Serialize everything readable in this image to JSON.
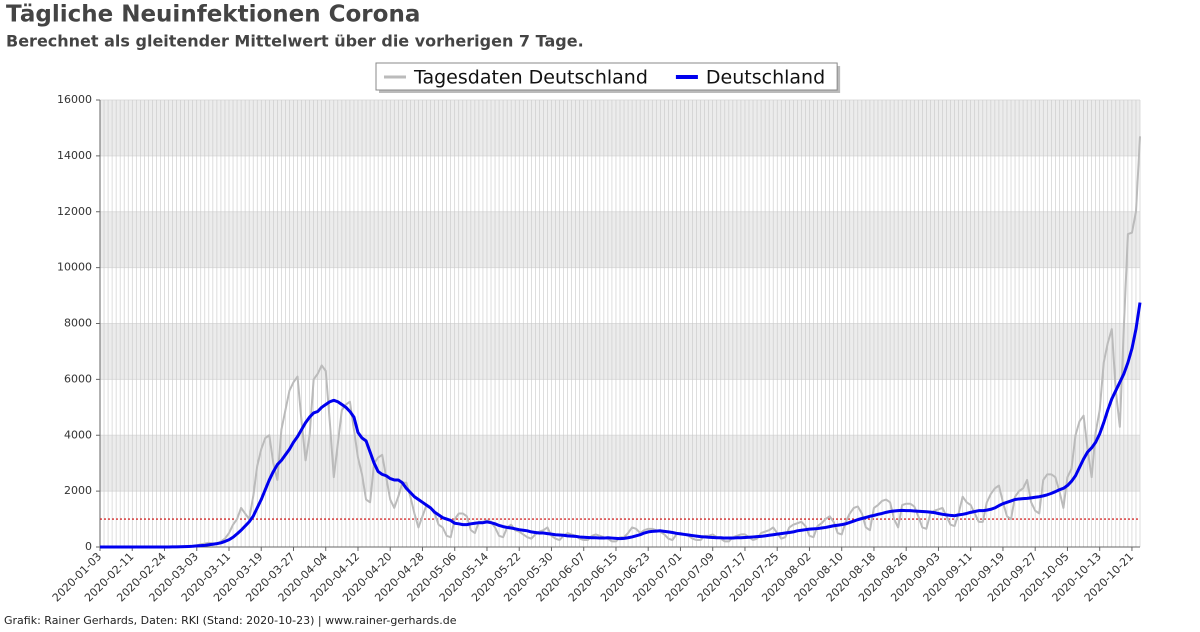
{
  "chart_data": {
    "type": "line",
    "title": "Tägliche Neuinfektionen Corona",
    "subtitle": "Berechnet als gleitender Mittelwert über die vorherigen 7 Tage.",
    "footer": "Grafik: Rainer Gerhards, Daten: RKI (Stand: 2020-10-23) | www.rainer-gerhards.de",
    "categories": [
      "2020-01-03",
      null,
      null,
      null,
      null,
      null,
      null,
      null,
      "2020-02-11",
      null,
      null,
      null,
      null,
      null,
      null,
      null,
      "2020-02-24",
      null,
      null,
      null,
      null,
      null,
      null,
      null,
      "2020-03-03",
      null,
      null,
      null,
      null,
      null,
      null,
      null,
      "2020-03-11",
      null,
      null,
      null,
      null,
      null,
      null,
      null,
      "2020-03-19",
      null,
      null,
      null,
      null,
      null,
      null,
      null,
      "2020-03-27",
      null,
      null,
      null,
      null,
      null,
      null,
      null,
      "2020-04-04",
      null,
      null,
      null,
      null,
      null,
      null,
      null,
      "2020-04-12",
      null,
      null,
      null,
      null,
      null,
      null,
      null,
      "2020-04-20",
      null,
      null,
      null,
      null,
      null,
      null,
      null,
      "2020-04-28",
      null,
      null,
      null,
      null,
      null,
      null,
      null,
      "2020-05-06",
      null,
      null,
      null,
      null,
      null,
      null,
      null,
      "2020-05-14",
      null,
      null,
      null,
      null,
      null,
      null,
      null,
      "2020-05-22",
      null,
      null,
      null,
      null,
      null,
      null,
      null,
      "2020-05-30",
      null,
      null,
      null,
      null,
      null,
      null,
      null,
      "2020-06-07",
      null,
      null,
      null,
      null,
      null,
      null,
      null,
      "2020-06-15",
      null,
      null,
      null,
      null,
      null,
      null,
      null,
      "2020-06-23",
      null,
      null,
      null,
      null,
      null,
      null,
      null,
      "2020-07-01",
      null,
      null,
      null,
      null,
      null,
      null,
      null,
      "2020-07-09",
      null,
      null,
      null,
      null,
      null,
      null,
      null,
      "2020-07-17",
      null,
      null,
      null,
      null,
      null,
      null,
      null,
      "2020-07-25",
      null,
      null,
      null,
      null,
      null,
      null,
      null,
      "2020-08-02",
      null,
      null,
      null,
      null,
      null,
      null,
      null,
      "2020-08-10",
      null,
      null,
      null,
      null,
      null,
      null,
      null,
      "2020-08-18",
      null,
      null,
      null,
      null,
      null,
      null,
      null,
      "2020-08-26",
      null,
      null,
      null,
      null,
      null,
      null,
      null,
      "2020-09-03",
      null,
      null,
      null,
      null,
      null,
      null,
      null,
      "2020-09-11",
      null,
      null,
      null,
      null,
      null,
      null,
      null,
      "2020-09-19",
      null,
      null,
      null,
      null,
      null,
      null,
      null,
      "2020-09-27",
      null,
      null,
      null,
      null,
      null,
      null,
      null,
      "2020-10-05",
      null,
      null,
      null,
      null,
      null,
      null,
      null,
      "2020-10-13",
      null,
      null,
      null,
      null,
      null,
      null,
      null,
      "2020-10-21",
      null,
      null
    ],
    "series": [
      {
        "name": "Tagesdaten Deutschland",
        "color": "#bbbbbb",
        "width": 2,
        "values": [
          0,
          0,
          0,
          0,
          0,
          0,
          0,
          0,
          0,
          0,
          0,
          0,
          0,
          0,
          0,
          0,
          0,
          2,
          5,
          8,
          10,
          15,
          20,
          30,
          50,
          100,
          120,
          150,
          130,
          100,
          200,
          300,
          500,
          800,
          1000,
          1400,
          1200,
          1000,
          1800,
          2900,
          3500,
          3900,
          4000,
          3000,
          2400,
          4200,
          4900,
          5600,
          5900,
          6100,
          4500,
          3100,
          4000,
          6000,
          6200,
          6500,
          6300,
          4500,
          2500,
          3700,
          4900,
          5100,
          5200,
          4200,
          3200,
          2600,
          1700,
          1600,
          3000,
          3200,
          3300,
          2500,
          1700,
          1400,
          1800,
          2300,
          2300,
          1800,
          1200,
          700,
          1100,
          1500,
          1400,
          1200,
          800,
          700,
          400,
          350,
          1000,
          1200,
          1200,
          1100,
          600,
          500,
          900,
          900,
          950,
          900,
          700,
          400,
          350,
          700,
          800,
          600,
          550,
          450,
          350,
          300,
          450,
          550,
          600,
          700,
          400,
          300,
          250,
          400,
          500,
          450,
          400,
          300,
          250,
          250,
          400,
          450,
          400,
          350,
          300,
          200,
          200,
          350,
          350,
          500,
          700,
          650,
          500,
          600,
          650,
          650,
          600,
          550,
          450,
          300,
          250,
          450,
          500,
          450,
          400,
          300,
          250,
          250,
          400,
          400,
          450,
          350,
          300,
          200,
          200,
          350,
          400,
          450,
          450,
          350,
          250,
          300,
          500,
          550,
          600,
          700,
          500,
          300,
          350,
          700,
          800,
          850,
          900,
          750,
          400,
          350,
          750,
          850,
          1000,
          1100,
          900,
          500,
          450,
          900,
          1200,
          1400,
          1450,
          1200,
          700,
          600,
          1400,
          1500,
          1650,
          1700,
          1600,
          1000,
          700,
          1500,
          1550,
          1550,
          1450,
          1100,
          700,
          650,
          1200,
          1300,
          1350,
          1400,
          1100,
          800,
          750,
          1200,
          1800,
          1600,
          1500,
          1200,
          900,
          900,
          1600,
          1900,
          2100,
          2200,
          1600,
          1100,
          1000,
          1800,
          2000,
          2100,
          2400,
          1600,
          1300,
          1200,
          2400,
          2600,
          2600,
          2500,
          2000,
          1400,
          2500,
          2800,
          4000,
          4500,
          4700,
          3500,
          2500,
          4100,
          4900,
          6600,
          7300,
          7800,
          5600,
          4300,
          7900,
          11200,
          11250,
          12000,
          14700
        ]
      },
      {
        "name": "Deutschland",
        "color": "#0000ee",
        "width": 3,
        "values": [
          0,
          0,
          0,
          0,
          0,
          0,
          0,
          0,
          0,
          0,
          0,
          0,
          0,
          0,
          0,
          0,
          1,
          2,
          3,
          5,
          8,
          12,
          18,
          25,
          40,
          50,
          60,
          80,
          100,
          120,
          150,
          200,
          260,
          350,
          470,
          600,
          750,
          900,
          1100,
          1400,
          1700,
          2050,
          2400,
          2700,
          2950,
          3100,
          3300,
          3500,
          3750,
          3950,
          4200,
          4450,
          4650,
          4800,
          4850,
          5000,
          5100,
          5200,
          5250,
          5200,
          5100,
          5000,
          4850,
          4650,
          4100,
          3900,
          3800,
          3400,
          3000,
          2700,
          2600,
          2550,
          2450,
          2400,
          2400,
          2300,
          2100,
          1950,
          1800,
          1700,
          1600,
          1500,
          1400,
          1250,
          1150,
          1050,
          1000,
          950,
          850,
          830,
          800,
          800,
          830,
          850,
          870,
          870,
          900,
          870,
          830,
          770,
          730,
          700,
          680,
          650,
          620,
          600,
          580,
          540,
          520,
          500,
          500,
          480,
          460,
          440,
          430,
          420,
          400,
          390,
          380,
          360,
          350,
          340,
          330,
          330,
          320,
          320,
          330,
          320,
          310,
          300,
          310,
          330,
          360,
          400,
          440,
          500,
          540,
          560,
          570,
          580,
          560,
          540,
          520,
          490,
          470,
          450,
          430,
          410,
          390,
          370,
          360,
          350,
          340,
          330,
          330,
          320,
          320,
          320,
          330,
          330,
          340,
          350,
          360,
          370,
          380,
          400,
          420,
          440,
          460,
          480,
          500,
          520,
          540,
          580,
          600,
          620,
          640,
          650,
          660,
          680,
          700,
          730,
          760,
          780,
          800,
          830,
          880,
          930,
          980,
          1020,
          1060,
          1100,
          1130,
          1170,
          1200,
          1240,
          1270,
          1290,
          1300,
          1310,
          1300,
          1300,
          1290,
          1280,
          1270,
          1260,
          1250,
          1230,
          1200,
          1170,
          1150,
          1130,
          1120,
          1150,
          1170,
          1200,
          1240,
          1270,
          1300,
          1300,
          1320,
          1350,
          1400,
          1480,
          1550,
          1600,
          1650,
          1700,
          1720,
          1730,
          1740,
          1760,
          1780,
          1800,
          1830,
          1870,
          1920,
          1980,
          2050,
          2100,
          2200,
          2350,
          2550,
          2850,
          3150,
          3400,
          3550,
          3750,
          4050,
          4450,
          4900,
          5300,
          5600,
          5900,
          6200,
          6600,
          7100,
          7800,
          8750
        ]
      }
    ],
    "ylim": [
      0,
      16000
    ],
    "yticks": [
      0,
      2000,
      4000,
      6000,
      8000,
      10000,
      12000,
      14000,
      16000
    ],
    "grid": true,
    "reference_line": {
      "value": 1000,
      "color": "#cc0000"
    },
    "legend": "top"
  }
}
